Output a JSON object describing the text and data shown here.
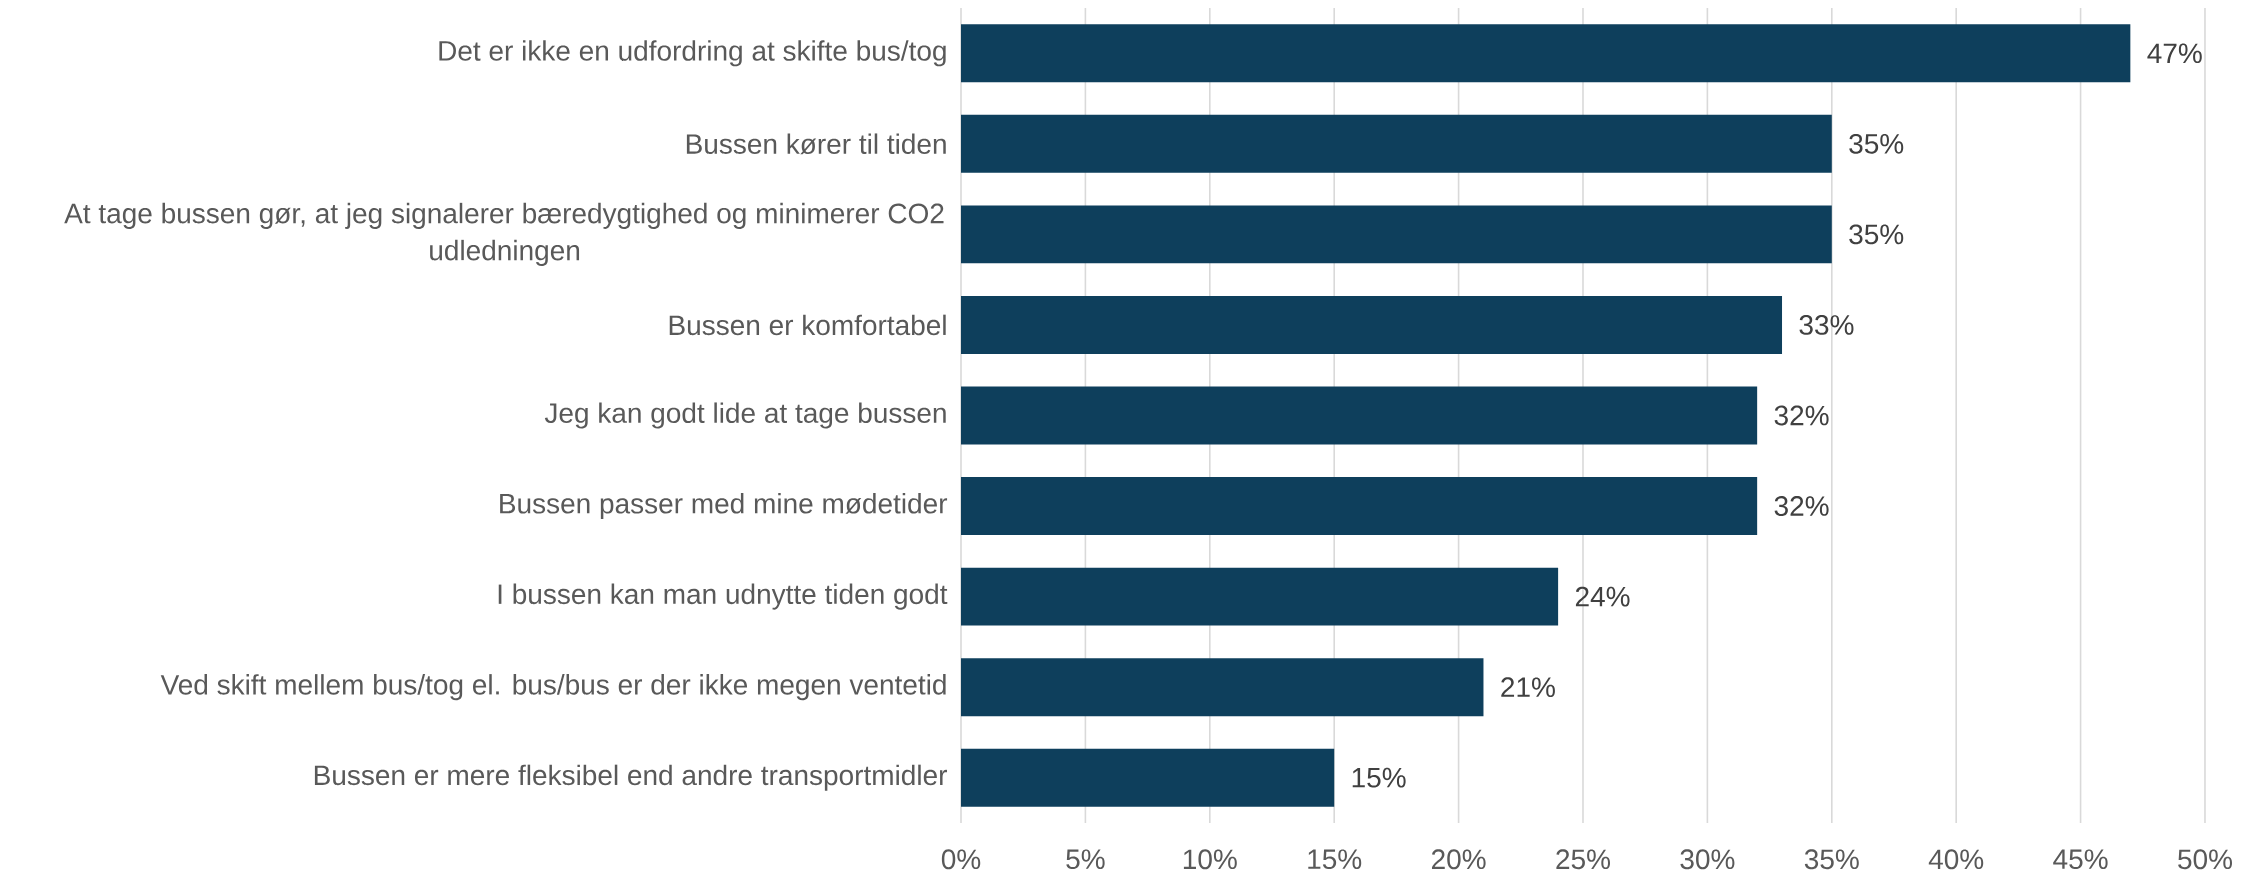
{
  "chart_data": {
    "type": "bar",
    "orientation": "horizontal",
    "categories": [
      "Det er ikke en udfordring at skifte bus/tog",
      "Bussen kører til tiden",
      "At tage bussen gør, at jeg signalerer bæredygtighed og minimerer CO2 udledningen",
      "Bussen er komfortabel",
      "Jeg kan godt lide at tage bussen",
      "Bussen passer med mine mødetider",
      "I bussen kan man udnytte tiden godt",
      "Ved skift mellem bus/tog el. bus/bus er der ikke megen ventetid",
      "Bussen er mere fleksibel end andre transportmidler"
    ],
    "values": [
      47,
      35,
      35,
      33,
      32,
      32,
      24,
      21,
      15
    ],
    "value_labels": [
      "47%",
      "35%",
      "35%",
      "33%",
      "32%",
      "32%",
      "24%",
      "21%",
      "15%"
    ],
    "color": "#0e3f5c",
    "xlim": [
      0,
      50
    ],
    "xticks": [
      {
        "value": 0,
        "label": "0%"
      },
      {
        "value": 5,
        "label": "5%"
      },
      {
        "value": 10,
        "label": "10%"
      },
      {
        "value": 15,
        "label": "15%"
      },
      {
        "value": 20,
        "label": "20%"
      },
      {
        "value": 25,
        "label": "25%"
      },
      {
        "value": 30,
        "label": "30%"
      },
      {
        "value": 35,
        "label": "35%"
      },
      {
        "value": 40,
        "label": "40%"
      },
      {
        "value": 45,
        "label": "45%"
      },
      {
        "value": 50,
        "label": "50%"
      }
    ],
    "grid": "x"
  }
}
